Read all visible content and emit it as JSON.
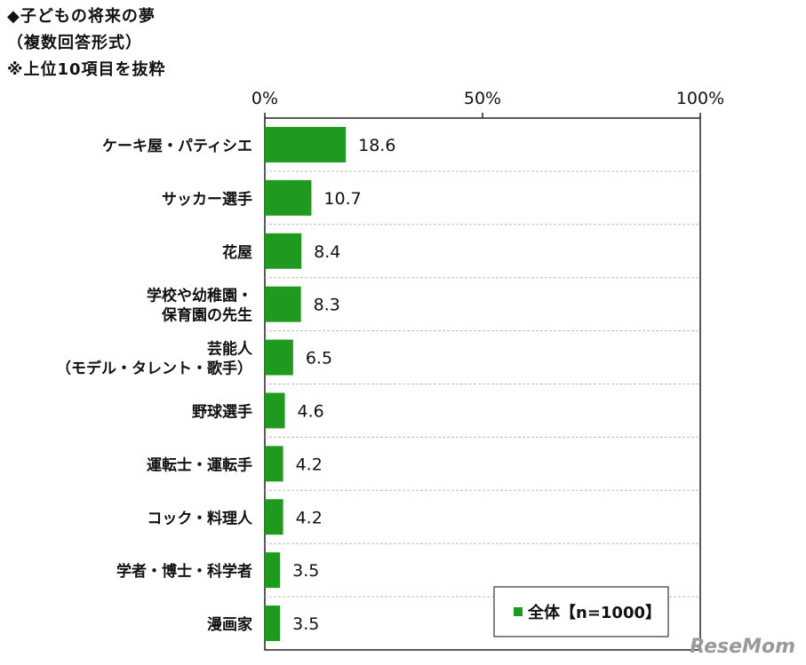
{
  "header": {
    "title": "◆子どもの将来の夢",
    "subtitle1": "（複数回答形式）",
    "subtitle2": "※上位10項目を抜粋"
  },
  "watermark": "ReseMom",
  "colors": {
    "bar": "#1f9a1f",
    "axis": "#222222",
    "grid": "#bdbdbd"
  },
  "chart_data": {
    "type": "bar",
    "orientation": "horizontal",
    "categories": [
      [
        "ケーキ屋・パティシエ"
      ],
      [
        "サッカー選手"
      ],
      [
        "花屋"
      ],
      [
        "学校や幼稚園・",
        "保育園の先生"
      ],
      [
        "芸能人",
        "（モデル・タレント・歌手）"
      ],
      [
        "野球選手"
      ],
      [
        "運転士・運転手"
      ],
      [
        "コック・料理人"
      ],
      [
        "学者・博士・科学者"
      ],
      [
        "漫画家"
      ]
    ],
    "series": [
      {
        "name": "全体【n=1000】",
        "values": [
          18.6,
          10.7,
          8.4,
          8.3,
          6.5,
          4.6,
          4.2,
          4.2,
          3.5,
          3.5
        ]
      }
    ],
    "value_labels": [
      "18.6",
      "10.7",
      "8.4",
      "8.3",
      "6.5",
      "4.6",
      "4.2",
      "4.2",
      "3.5",
      "3.5"
    ],
    "xlim": [
      0,
      100
    ],
    "xticks": [
      "0%",
      "50%",
      "100%"
    ],
    "xtick_values": [
      0,
      50,
      100
    ],
    "legend_position": "bottom-right",
    "grid": true
  }
}
